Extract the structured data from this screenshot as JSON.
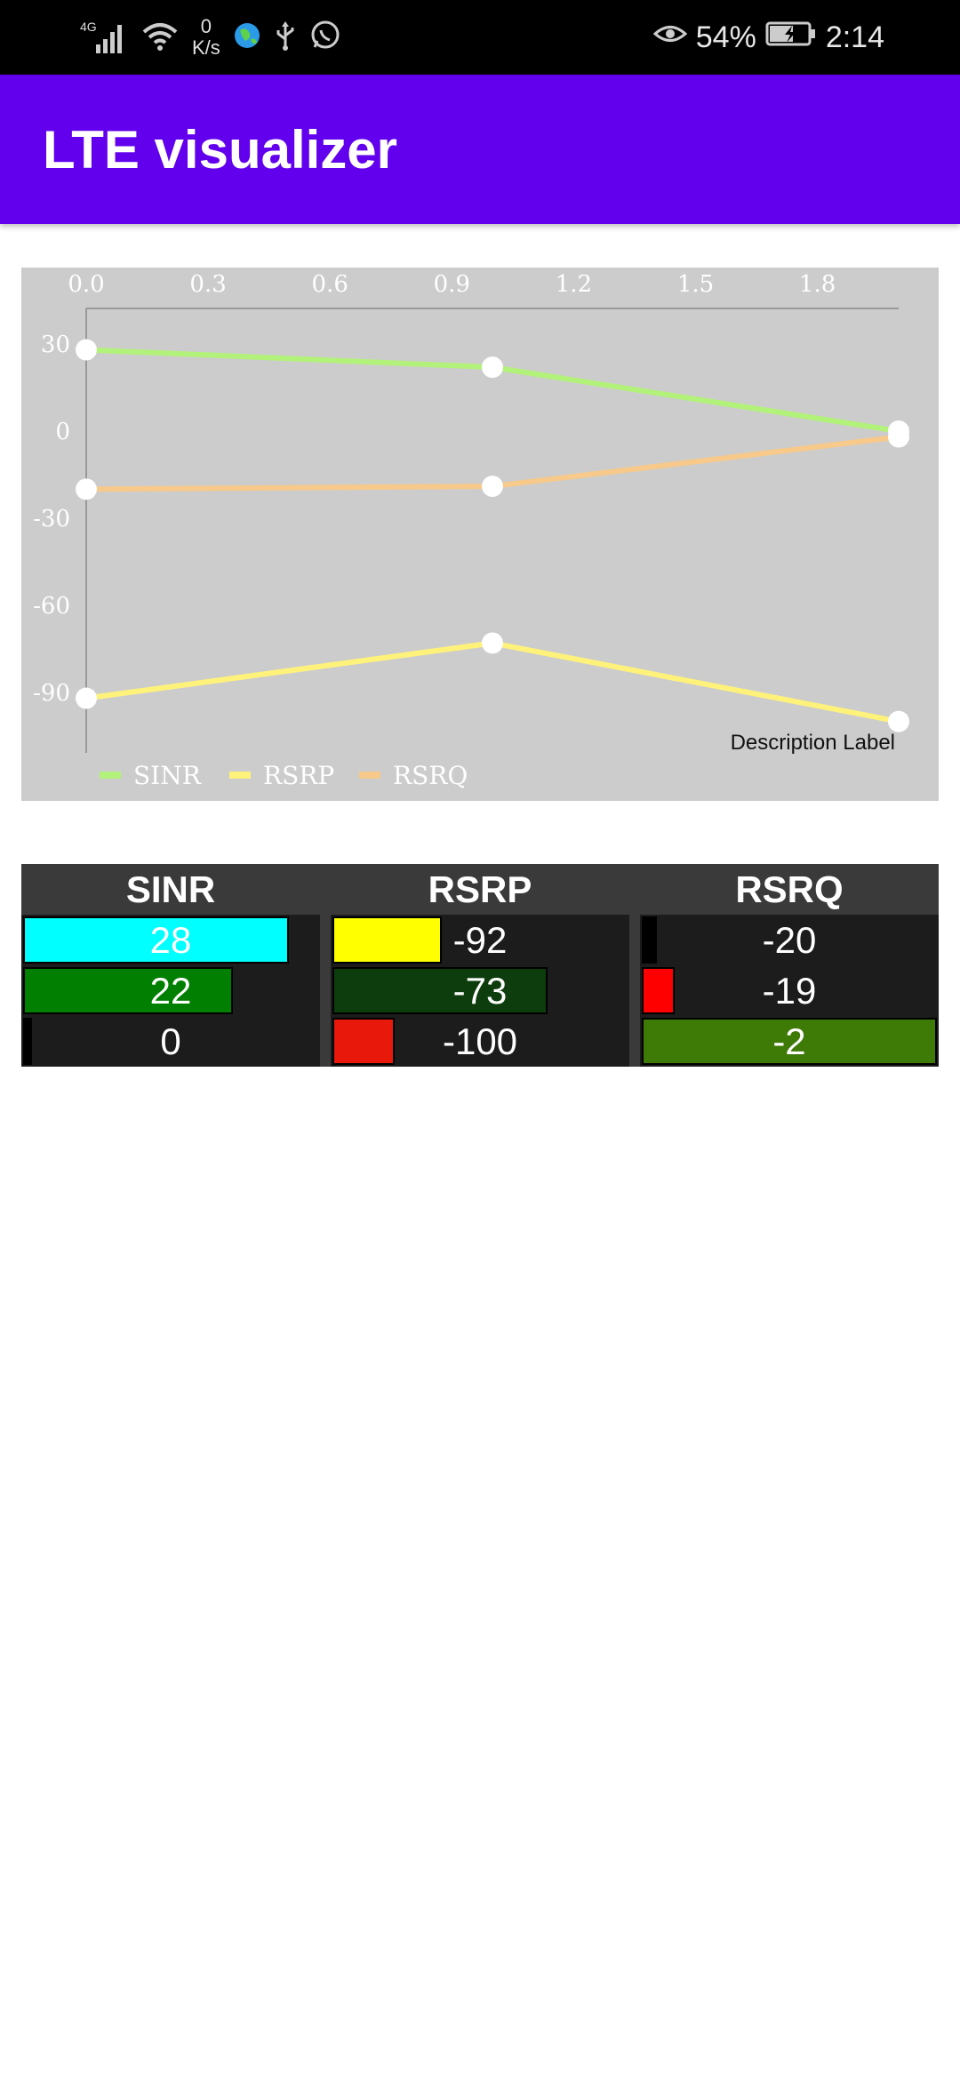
{
  "status_bar": {
    "network_type": "4G",
    "net_speed_value": "0",
    "net_speed_unit": "K/s",
    "battery_percent": "54%",
    "time": "2:14"
  },
  "app_bar": {
    "title": "LTE visualizer"
  },
  "chart_data": {
    "type": "line",
    "x_ticks": [
      "0.0",
      "0.3",
      "0.6",
      "0.9",
      "1.2",
      "1.5",
      "1.8"
    ],
    "y_ticks": [
      "30",
      "0",
      "-30",
      "-60",
      "-90"
    ],
    "xlim": [
      0,
      2
    ],
    "ylim": [
      -105,
      38
    ],
    "x": [
      0,
      1,
      2
    ],
    "series": [
      {
        "name": "SINR",
        "color": "#b3f27a",
        "values": [
          28,
          22,
          0
        ]
      },
      {
        "name": "RSRP",
        "color": "#fff27a",
        "values": [
          -92,
          -73,
          -100
        ]
      },
      {
        "name": "RSRQ",
        "color": "#f7c98a",
        "values": [
          -20,
          -19,
          -2
        ]
      }
    ],
    "description": "Description Label",
    "grid": false,
    "legend": "bottom-left"
  },
  "table": {
    "columns": [
      {
        "header": "SINR",
        "rows": [
          {
            "value": "28",
            "fill": 0.9,
            "color": "#00ffff",
            "text_color": "#ffffff"
          },
          {
            "value": "22",
            "fill": 0.71,
            "color": "#007f00",
            "text_color": "#ffffff"
          },
          {
            "value": "0",
            "fill": 0.03,
            "color": "#000000",
            "text_color": "#ffffff"
          }
        ]
      },
      {
        "header": "RSRP",
        "rows": [
          {
            "value": "-92",
            "fill": 0.37,
            "color": "#ffff00",
            "text_color": "#ffffff"
          },
          {
            "value": "-73",
            "fill": 0.73,
            "color": "#0d3d0d",
            "text_color": "#ffffff"
          },
          {
            "value": "-100",
            "fill": 0.21,
            "color": "#e8180a",
            "text_color": "#ffffff"
          }
        ]
      },
      {
        "header": "RSRQ",
        "rows": [
          {
            "value": "-20",
            "fill": 0.05,
            "color": "#000000",
            "text_color": "#ffffff"
          },
          {
            "value": "-19",
            "fill": 0.11,
            "color": "#ff0000",
            "text_color": "#ffffff"
          },
          {
            "value": "-2",
            "fill": 1.0,
            "color": "#3e7a06",
            "text_color": "#ffffff"
          }
        ]
      }
    ]
  }
}
